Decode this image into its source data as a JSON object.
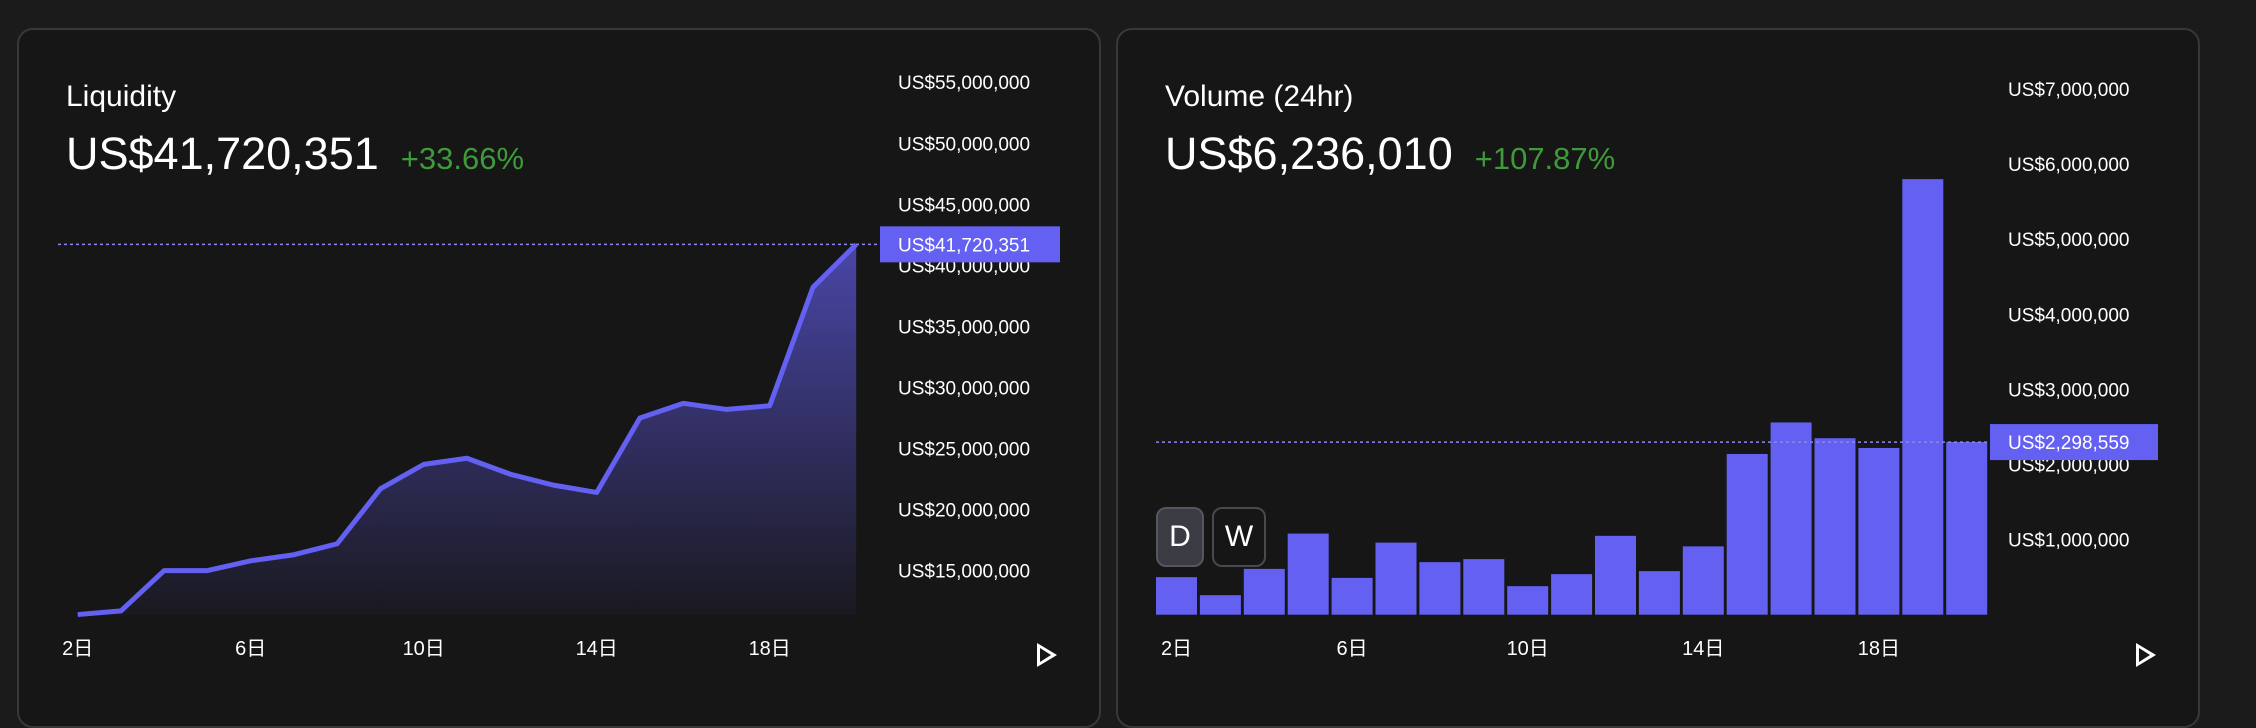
{
  "colors": {
    "accent": "#6360f2",
    "positive": "#3e9a3a",
    "card_bg": "#161616"
  },
  "liquidity": {
    "title": "Liquidity",
    "value": "US$41,720,351",
    "change": "+33.66%",
    "play_icon": "play-icon"
  },
  "volume": {
    "title": "Volume (24hr)",
    "value": "US$6,236,010",
    "change": "+107.87%",
    "toggle": {
      "daily": "D",
      "weekly": "W",
      "selected": "D"
    },
    "play_icon": "play-icon"
  },
  "chart_data": [
    {
      "type": "area",
      "title": "Liquidity",
      "x": [
        2,
        3,
        4,
        5,
        6,
        7,
        8,
        9,
        10,
        11,
        12,
        13,
        14,
        15,
        16,
        17,
        18,
        19,
        20
      ],
      "values": [
        11.4,
        11.7,
        15.0,
        15.0,
        15.8,
        16.3,
        17.2,
        21.7,
        23.7,
        24.2,
        22.9,
        22.0,
        21.4,
        27.5,
        28.7,
        28.2,
        28.5,
        38.2,
        41.72
      ],
      "unit": "US$ millions",
      "ylim": [
        11,
        55
      ],
      "yticks": [
        {
          "v": 55,
          "label": "US$55,000,000"
        },
        {
          "v": 50,
          "label": "US$50,000,000"
        },
        {
          "v": 45,
          "label": "US$45,000,000"
        },
        {
          "v": 40,
          "label": "US$40,000,000"
        },
        {
          "v": 35,
          "label": "US$35,000,000"
        },
        {
          "v": 30,
          "label": "US$30,000,000"
        },
        {
          "v": 25,
          "label": "US$25,000,000"
        },
        {
          "v": 20,
          "label": "US$20,000,000"
        },
        {
          "v": 15,
          "label": "US$15,000,000"
        }
      ],
      "xticks": [
        {
          "v": 2,
          "label": "2日"
        },
        {
          "v": 6,
          "label": "6日"
        },
        {
          "v": 10,
          "label": "10日"
        },
        {
          "v": 14,
          "label": "14日"
        },
        {
          "v": 18,
          "label": "18日"
        }
      ],
      "crosshair": {
        "v": 41.720351,
        "label": "US$41,720,351"
      }
    },
    {
      "type": "bar",
      "title": "Volume (24hr)",
      "x": [
        2,
        3,
        4,
        5,
        6,
        7,
        8,
        9,
        10,
        11,
        12,
        13,
        14,
        15,
        16,
        17,
        18,
        19,
        20
      ],
      "values": [
        0.5,
        0.26,
        0.61,
        1.08,
        0.49,
        0.96,
        0.7,
        0.74,
        0.38,
        0.54,
        1.05,
        0.58,
        0.91,
        2.14,
        2.56,
        2.35,
        2.22,
        5.8,
        2.3
      ],
      "unit": "US$ millions",
      "ylim": [
        0,
        7
      ],
      "yticks": [
        {
          "v": 7,
          "label": "US$7,000,000"
        },
        {
          "v": 6,
          "label": "US$6,000,000"
        },
        {
          "v": 5,
          "label": "US$5,000,000"
        },
        {
          "v": 4,
          "label": "US$4,000,000"
        },
        {
          "v": 3,
          "label": "US$3,000,000"
        },
        {
          "v": 2,
          "label": "US$2,000,000"
        },
        {
          "v": 1,
          "label": "US$1,000,000"
        }
      ],
      "xticks": [
        {
          "v": 2,
          "label": "2日"
        },
        {
          "v": 6,
          "label": "6日"
        },
        {
          "v": 10,
          "label": "10日"
        },
        {
          "v": 14,
          "label": "14日"
        },
        {
          "v": 18,
          "label": "18日"
        }
      ],
      "crosshair": {
        "v": 2.298559,
        "label": "US$2,298,559"
      }
    }
  ]
}
